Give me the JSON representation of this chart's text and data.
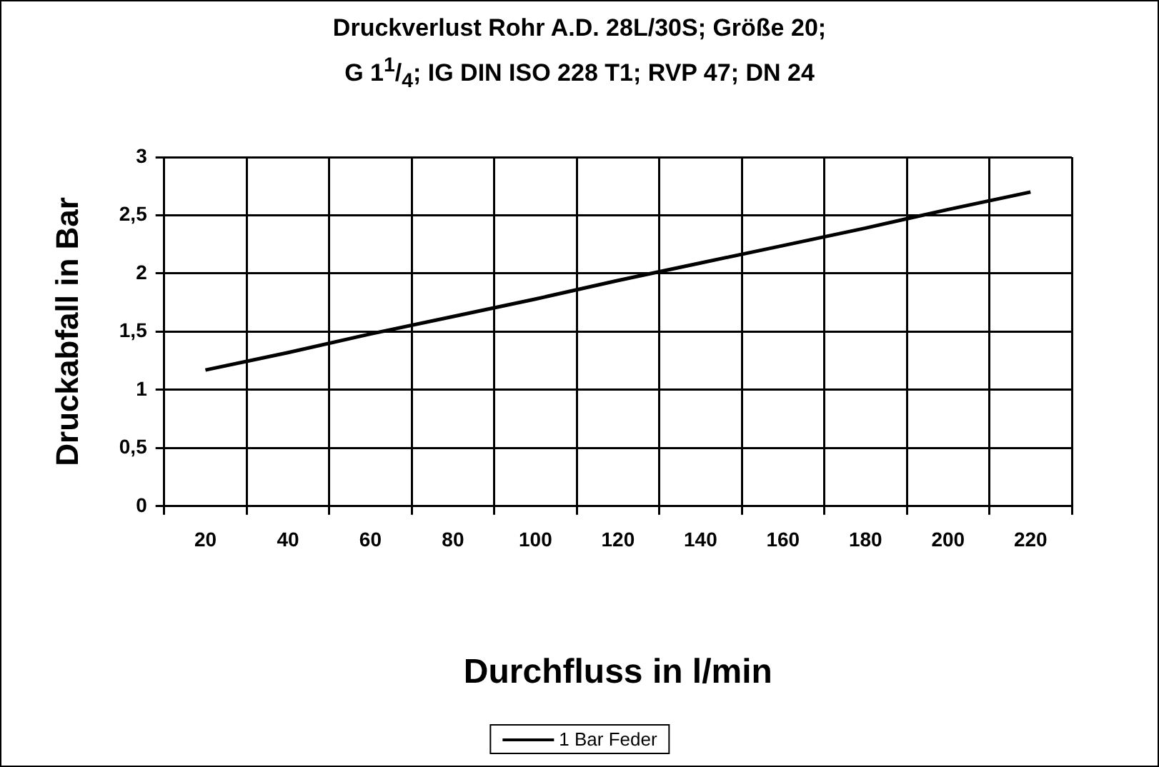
{
  "chart_data": {
    "type": "line",
    "title": "Druckverlust Rohr A.D. 28L/30S; Größe 20;\nG 1$^{1}$/$_{4}$; IG DIN ISO 228 T1; RVP 47; DN 24",
    "xlabel": "Durchfluss in l/min",
    "ylabel": "Druckabfall in Bar",
    "categories": [
      "20",
      "40",
      "60",
      "80",
      "100",
      "120",
      "140",
      "160",
      "180",
      "200",
      "220"
    ],
    "series": [
      {
        "name": "1 Bar Feder",
        "color": "#000000",
        "values": [
          1.17,
          1.32,
          1.48,
          1.63,
          1.78,
          1.94,
          2.09,
          2.24,
          2.39,
          2.55,
          2.7
        ]
      }
    ],
    "ylim": [
      0,
      3
    ],
    "yticks": [
      0,
      {
        "value": 0.5,
        "label": "0,5"
      },
      1,
      {
        "value": 1.5,
        "label": "1,5"
      },
      2,
      {
        "value": 2.5,
        "label": "2,5"
      },
      3
    ],
    "grid": true,
    "legend": "bottom",
    "marker": "none",
    "line_style": "solid"
  }
}
